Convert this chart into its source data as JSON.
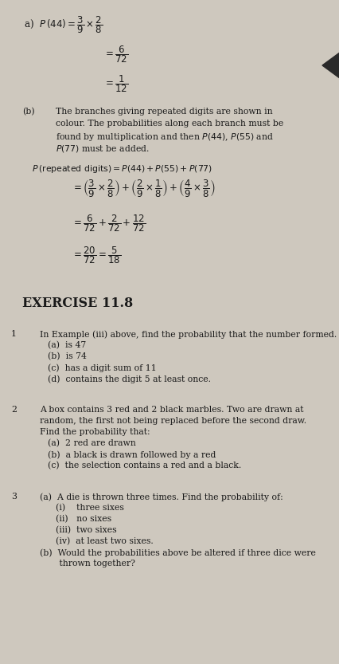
{
  "bg_color": "#cec8be",
  "text_color": "#1a1a1a",
  "part_a_line1": "a)  $P(44) = \\dfrac{3}{9}\\times\\dfrac{2}{8}$",
  "part_a_line2": "$= \\dfrac{6}{72}$",
  "part_a_line3": "$= \\dfrac{1}{12}$",
  "part_b_label": "(b)",
  "part_b_text1": "The branches giving repeated digits are shown in",
  "part_b_text2": "colour. The probabilities along each branch must be",
  "part_b_text3": "found by multiplication and then $P(44)$, $P(55)$ and",
  "part_b_text4": "$P(77)$ must be added.",
  "eq1": "$P\\,(\\mathrm{repeated\\ digits}) = P(44)+P(55)+P(77)$",
  "eq2": "$= \\left(\\dfrac{3}{9}\\times\\dfrac{2}{8}\\right)+\\left(\\dfrac{2}{9}\\times\\dfrac{1}{8}\\right)+\\left(\\dfrac{4}{9}\\times\\dfrac{3}{8}\\right)$",
  "eq3": "$= \\dfrac{6}{72}+\\dfrac{2}{72}+\\dfrac{12}{72}$",
  "eq4": "$= \\dfrac{20}{72} = \\dfrac{5}{18}$",
  "exercise_title": "EXERCISE 11.8",
  "q1_num": "1",
  "q1_intro": "In Example (iii) above, find the probability that the number formed.",
  "q1_parts": [
    "(a)  is 47",
    "(b)  is 74",
    "(c)  has a digit sum of 11",
    "(d)  contains the digit 5 at least once."
  ],
  "q2_num": "2",
  "q2_intro": "A box contains 3 red and 2 black marbles. Two are drawn at",
  "q2_intro2": "random, the first not being replaced before the second draw.",
  "q2_intro3": "Find the probability that:",
  "q2_parts": [
    "(a)  2 red are drawn",
    "(b)  a black is drawn followed by a red",
    "(c)  the selection contains a red and a black."
  ],
  "q3_num": "3",
  "q3_intro": "(a)  A die is thrown three times. Find the probability of:",
  "q3_parts_a": [
    "(i)    three sixes",
    "(ii)   no sixes",
    "(iii)  two sixes",
    "(iv)  at least two sixes."
  ],
  "q3_part_b": "(b)  Would the probabilities above be altered if three dice were",
  "q3_part_b2": "       thrown together?",
  "arrow_color": "#2a2a2a"
}
